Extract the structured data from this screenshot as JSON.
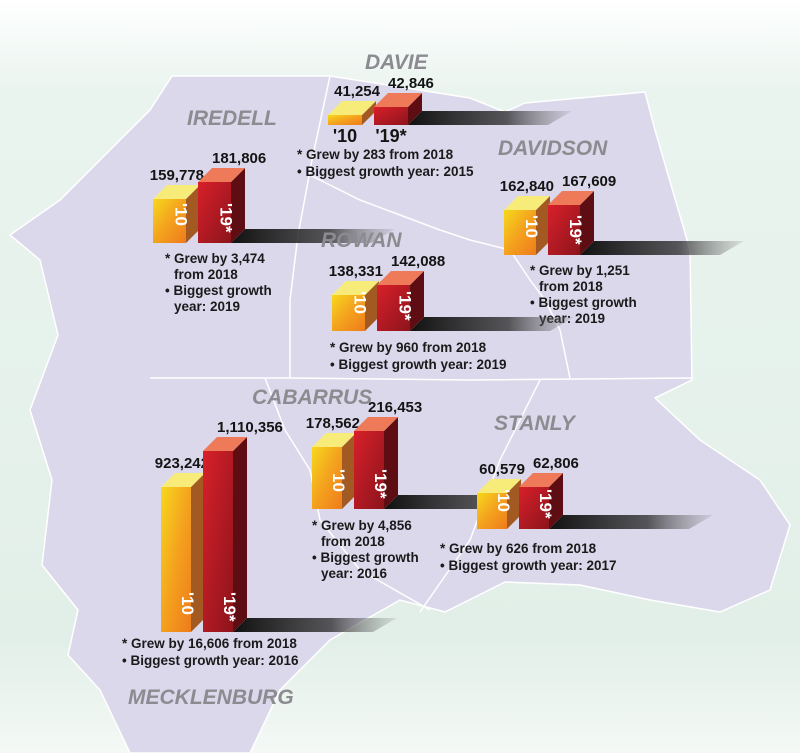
{
  "chart_data": {
    "type": "bar",
    "categories": [
      "'10",
      "'19*"
    ],
    "colors": {
      "bar_2010": "#f39a1e",
      "bar_2019": "#a3161f",
      "map_fill": "#dcd8ec",
      "background": "#e6f2ec",
      "county_label": "#8b8b90"
    },
    "groups": [
      {
        "county": "IREDELL",
        "values": [
          159778,
          181806
        ],
        "value_labels": [
          "159,778",
          "181,806"
        ],
        "bar_labels": [
          "'10",
          "'19*"
        ],
        "notes": [
          "* Grew by 3,474",
          "from 2018",
          "• Biggest growth",
          "year: 2019"
        ]
      },
      {
        "county": "DAVIE",
        "values": [
          41254,
          42846
        ],
        "value_labels": [
          "41,254",
          "42,846"
        ],
        "bar_labels": [
          "'10",
          "'19*"
        ],
        "notes": [
          "* Grew by 283 from 2018",
          "• Biggest growth year: 2015"
        ]
      },
      {
        "county": "DAVIDSON",
        "values": [
          162840,
          167609
        ],
        "value_labels": [
          "162,840",
          "167,609"
        ],
        "bar_labels": [
          "'10",
          "'19*"
        ],
        "notes": [
          "* Grew by 1,251",
          "from 2018",
          "• Biggest growth",
          "year: 2019"
        ]
      },
      {
        "county": "ROWAN",
        "values": [
          138331,
          142088
        ],
        "value_labels": [
          "138,331",
          "142,088"
        ],
        "bar_labels": [
          "'10",
          "'19*"
        ],
        "notes": [
          "* Grew by 960 from 2018",
          "• Biggest growth year: 2019"
        ]
      },
      {
        "county": "MECKLENBURG",
        "values": [
          923242,
          1110356
        ],
        "value_labels": [
          "923,242",
          "1,110,356"
        ],
        "bar_labels": [
          "'10",
          "'19*"
        ],
        "notes": [
          "* Grew by 16,606 from 2018",
          "• Biggest growth year: 2016"
        ]
      },
      {
        "county": "CABARRUS",
        "values": [
          178562,
          216453
        ],
        "value_labels": [
          "178,562",
          "216,453"
        ],
        "bar_labels": [
          "'10",
          "'19*"
        ],
        "notes": [
          "* Grew by 4,856",
          "from 2018",
          "• Biggest growth",
          "year: 2016"
        ]
      },
      {
        "county": "STANLY",
        "values": [
          60579,
          62806
        ],
        "value_labels": [
          "60,579",
          "62,806"
        ],
        "bar_labels": [
          "'10",
          "'19*"
        ],
        "notes": [
          "* Grew by 626 from 2018",
          "• Biggest growth year: 2017"
        ]
      }
    ]
  }
}
